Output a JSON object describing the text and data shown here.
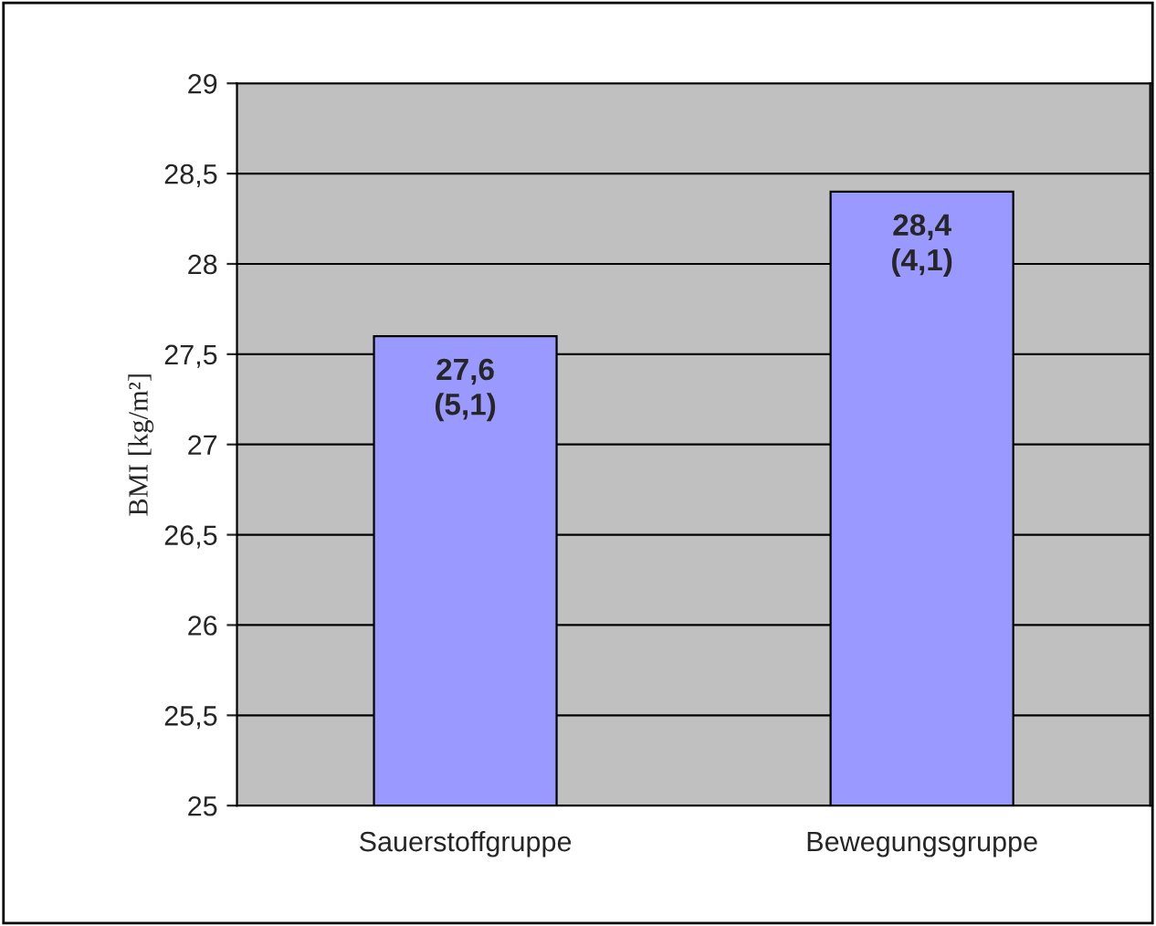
{
  "chart_data": {
    "type": "bar",
    "ylabel": "BMI [kg/m²]",
    "categories": [
      "Sauerstoffgruppe",
      "Bewegungsgruppe"
    ],
    "values": [
      27.6,
      28.4
    ],
    "color": "#9999ff",
    "value_labels": [
      "27,6\n(5,1)",
      "28,4\n(4,1)"
    ],
    "ylim": [
      25,
      29
    ],
    "yticks": [
      25,
      {
        "value": 25.5,
        "label": "25,5"
      },
      26,
      {
        "value": 26.5,
        "label": "26,5"
      },
      27,
      {
        "value": 27.5,
        "label": "27,5"
      },
      28,
      {
        "value": 28.5,
        "label": "28,5"
      },
      29
    ],
    "grid": "y",
    "legend": false
  }
}
